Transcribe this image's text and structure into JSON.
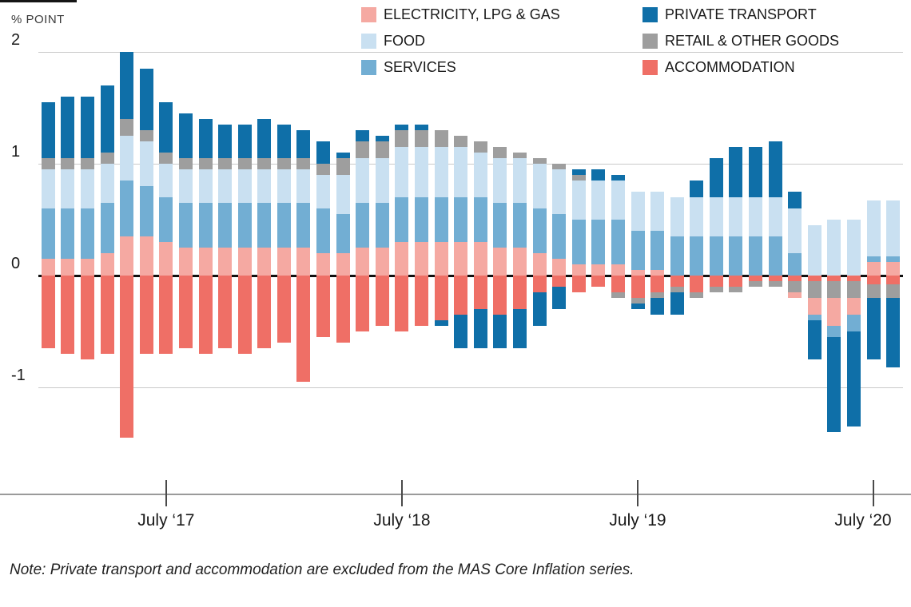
{
  "note": "Note: Private transport and accommodation are excluded from the MAS Core Inflation series.",
  "legend": {
    "col1": [
      {
        "key": "electricity",
        "label": "ELECTRICITY, LPG & GAS"
      },
      {
        "key": "food",
        "label": "FOOD"
      },
      {
        "key": "services",
        "label": "SERVICES"
      }
    ],
    "col2": [
      {
        "key": "private_transport",
        "label": "PRIVATE TRANSPORT"
      },
      {
        "key": "retail",
        "label": "RETAIL & OTHER GOODS"
      },
      {
        "key": "accommodation",
        "label": "ACCOMMODATION"
      }
    ]
  },
  "chart_data": {
    "type": "bar",
    "stacked": true,
    "ylabel": "% POINT",
    "ylim": [
      -1.95,
      2.15
    ],
    "y_ticks": [
      2,
      1,
      0,
      -1
    ],
    "grid": true,
    "legend_position": "top",
    "x": [
      "2017-01",
      "2017-02",
      "2017-03",
      "2017-04",
      "2017-05",
      "2017-06",
      "2017-07",
      "2017-08",
      "2017-09",
      "2017-10",
      "2017-11",
      "2017-12",
      "2018-01",
      "2018-02",
      "2018-03",
      "2018-04",
      "2018-05",
      "2018-06",
      "2018-07",
      "2018-08",
      "2018-09",
      "2018-10",
      "2018-11",
      "2018-12",
      "2019-01",
      "2019-02",
      "2019-03",
      "2019-04",
      "2019-05",
      "2019-06",
      "2019-07",
      "2019-08",
      "2019-09",
      "2019-10",
      "2019-11",
      "2019-12",
      "2020-01",
      "2020-02",
      "2020-03",
      "2020-04",
      "2020-05",
      "2020-06",
      "2020-07",
      "2020-08"
    ],
    "x_ticks": [
      {
        "index": 6,
        "label": "July ‘17"
      },
      {
        "index": 18,
        "label": "July ‘18"
      },
      {
        "index": 30,
        "label": "July ‘19"
      },
      {
        "index": 42,
        "label": "July ‘20"
      }
    ],
    "positive_stack_order": [
      "electricity",
      "services",
      "food",
      "retail",
      "private_transport",
      "accommodation"
    ],
    "negative_stack_order": [
      "accommodation",
      "retail",
      "electricity",
      "services",
      "private_transport"
    ],
    "series": [
      {
        "name": "ELECTRICITY, LPG & GAS",
        "key": "electricity",
        "color": "#f5a9a2",
        "values": [
          0.15,
          0.15,
          0.15,
          0.2,
          0.35,
          0.35,
          0.3,
          0.25,
          0.25,
          0.25,
          0.25,
          0.25,
          0.25,
          0.25,
          0.2,
          0.2,
          0.25,
          0.25,
          0.3,
          0.3,
          0.3,
          0.3,
          0.3,
          0.25,
          0.25,
          0.2,
          0.15,
          0.1,
          0.1,
          0.1,
          0.05,
          0.05,
          0.0,
          0.0,
          0.0,
          0.0,
          0.0,
          0.0,
          -0.05,
          -0.15,
          -0.25,
          -0.15,
          0.12,
          0.12
        ]
      },
      {
        "name": "FOOD",
        "key": "food",
        "color": "#c9e0f1",
        "values": [
          0.35,
          0.35,
          0.35,
          0.35,
          0.4,
          0.4,
          0.3,
          0.3,
          0.3,
          0.3,
          0.3,
          0.3,
          0.3,
          0.3,
          0.3,
          0.35,
          0.4,
          0.4,
          0.45,
          0.45,
          0.45,
          0.45,
          0.4,
          0.4,
          0.4,
          0.4,
          0.4,
          0.35,
          0.35,
          0.35,
          0.35,
          0.35,
          0.35,
          0.35,
          0.35,
          0.35,
          0.35,
          0.35,
          0.4,
          0.45,
          0.5,
          0.5,
          0.5,
          0.5
        ]
      },
      {
        "name": "SERVICES",
        "key": "services",
        "color": "#72aed3",
        "values": [
          0.45,
          0.45,
          0.45,
          0.45,
          0.5,
          0.45,
          0.4,
          0.4,
          0.4,
          0.4,
          0.4,
          0.4,
          0.4,
          0.4,
          0.4,
          0.35,
          0.4,
          0.4,
          0.4,
          0.4,
          0.4,
          0.4,
          0.4,
          0.4,
          0.4,
          0.4,
          0.4,
          0.4,
          0.4,
          0.4,
          0.35,
          0.35,
          0.35,
          0.35,
          0.35,
          0.35,
          0.35,
          0.35,
          0.2,
          -0.05,
          -0.1,
          -0.15,
          0.05,
          0.05
        ]
      },
      {
        "name": "RETAIL & OTHER GOODS",
        "key": "retail",
        "color": "#9e9e9e",
        "values": [
          0.1,
          0.1,
          0.1,
          0.1,
          0.15,
          0.1,
          0.1,
          0.1,
          0.1,
          0.1,
          0.1,
          0.1,
          0.1,
          0.1,
          0.1,
          0.15,
          0.15,
          0.15,
          0.15,
          0.15,
          0.15,
          0.1,
          0.1,
          0.1,
          0.05,
          0.05,
          0.05,
          0.05,
          0.0,
          -0.05,
          -0.05,
          -0.05,
          -0.05,
          -0.05,
          -0.05,
          -0.05,
          -0.05,
          -0.05,
          -0.1,
          -0.15,
          -0.15,
          -0.15,
          -0.12,
          -0.12
        ]
      },
      {
        "name": "PRIVATE TRANSPORT",
        "key": "private_transport",
        "color": "#0f6fa8",
        "values": [
          0.5,
          0.55,
          0.55,
          0.6,
          0.6,
          0.55,
          0.45,
          0.4,
          0.35,
          0.3,
          0.3,
          0.35,
          0.3,
          0.25,
          0.2,
          0.05,
          0.1,
          0.05,
          0.05,
          0.05,
          -0.05,
          -0.3,
          -0.35,
          -0.3,
          -0.35,
          -0.3,
          -0.2,
          0.05,
          0.1,
          0.05,
          -0.05,
          -0.15,
          -0.2,
          0.15,
          0.35,
          0.45,
          0.45,
          0.5,
          0.15,
          -0.35,
          -0.85,
          -0.85,
          -0.55,
          -0.62
        ]
      },
      {
        "name": "ACCOMMODATION",
        "key": "accommodation",
        "color": "#ef6f66",
        "values": [
          -0.65,
          -0.7,
          -0.75,
          -0.7,
          -1.45,
          -0.7,
          -0.7,
          -0.65,
          -0.7,
          -0.65,
          -0.7,
          -0.65,
          -0.6,
          -0.95,
          -0.55,
          -0.6,
          -0.5,
          -0.45,
          -0.5,
          -0.45,
          -0.4,
          -0.35,
          -0.3,
          -0.35,
          -0.3,
          -0.15,
          -0.1,
          -0.15,
          -0.1,
          -0.15,
          -0.2,
          -0.15,
          -0.1,
          -0.15,
          -0.1,
          -0.1,
          -0.05,
          -0.05,
          -0.05,
          -0.05,
          -0.05,
          -0.05,
          -0.08,
          -0.08
        ]
      }
    ]
  }
}
